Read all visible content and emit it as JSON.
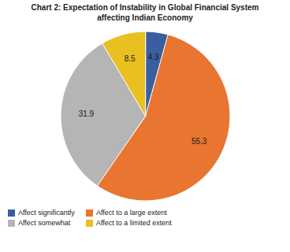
{
  "chart_data": {
    "type": "pie",
    "title": "Chart 2: Expectation of Instability in Global Financial System\naffecting Indian Economy",
    "categories": [
      "Affect significantly",
      "Affect to a large extent",
      "Affect somewhat",
      "Affect to a limited extent"
    ],
    "values": [
      4.3,
      55.3,
      31.9,
      8.5
    ],
    "colors": [
      "#3a5fa0",
      "#e87530",
      "#b5b5b5",
      "#e8c020"
    ],
    "data_labels": true,
    "legend": "lower left"
  }
}
